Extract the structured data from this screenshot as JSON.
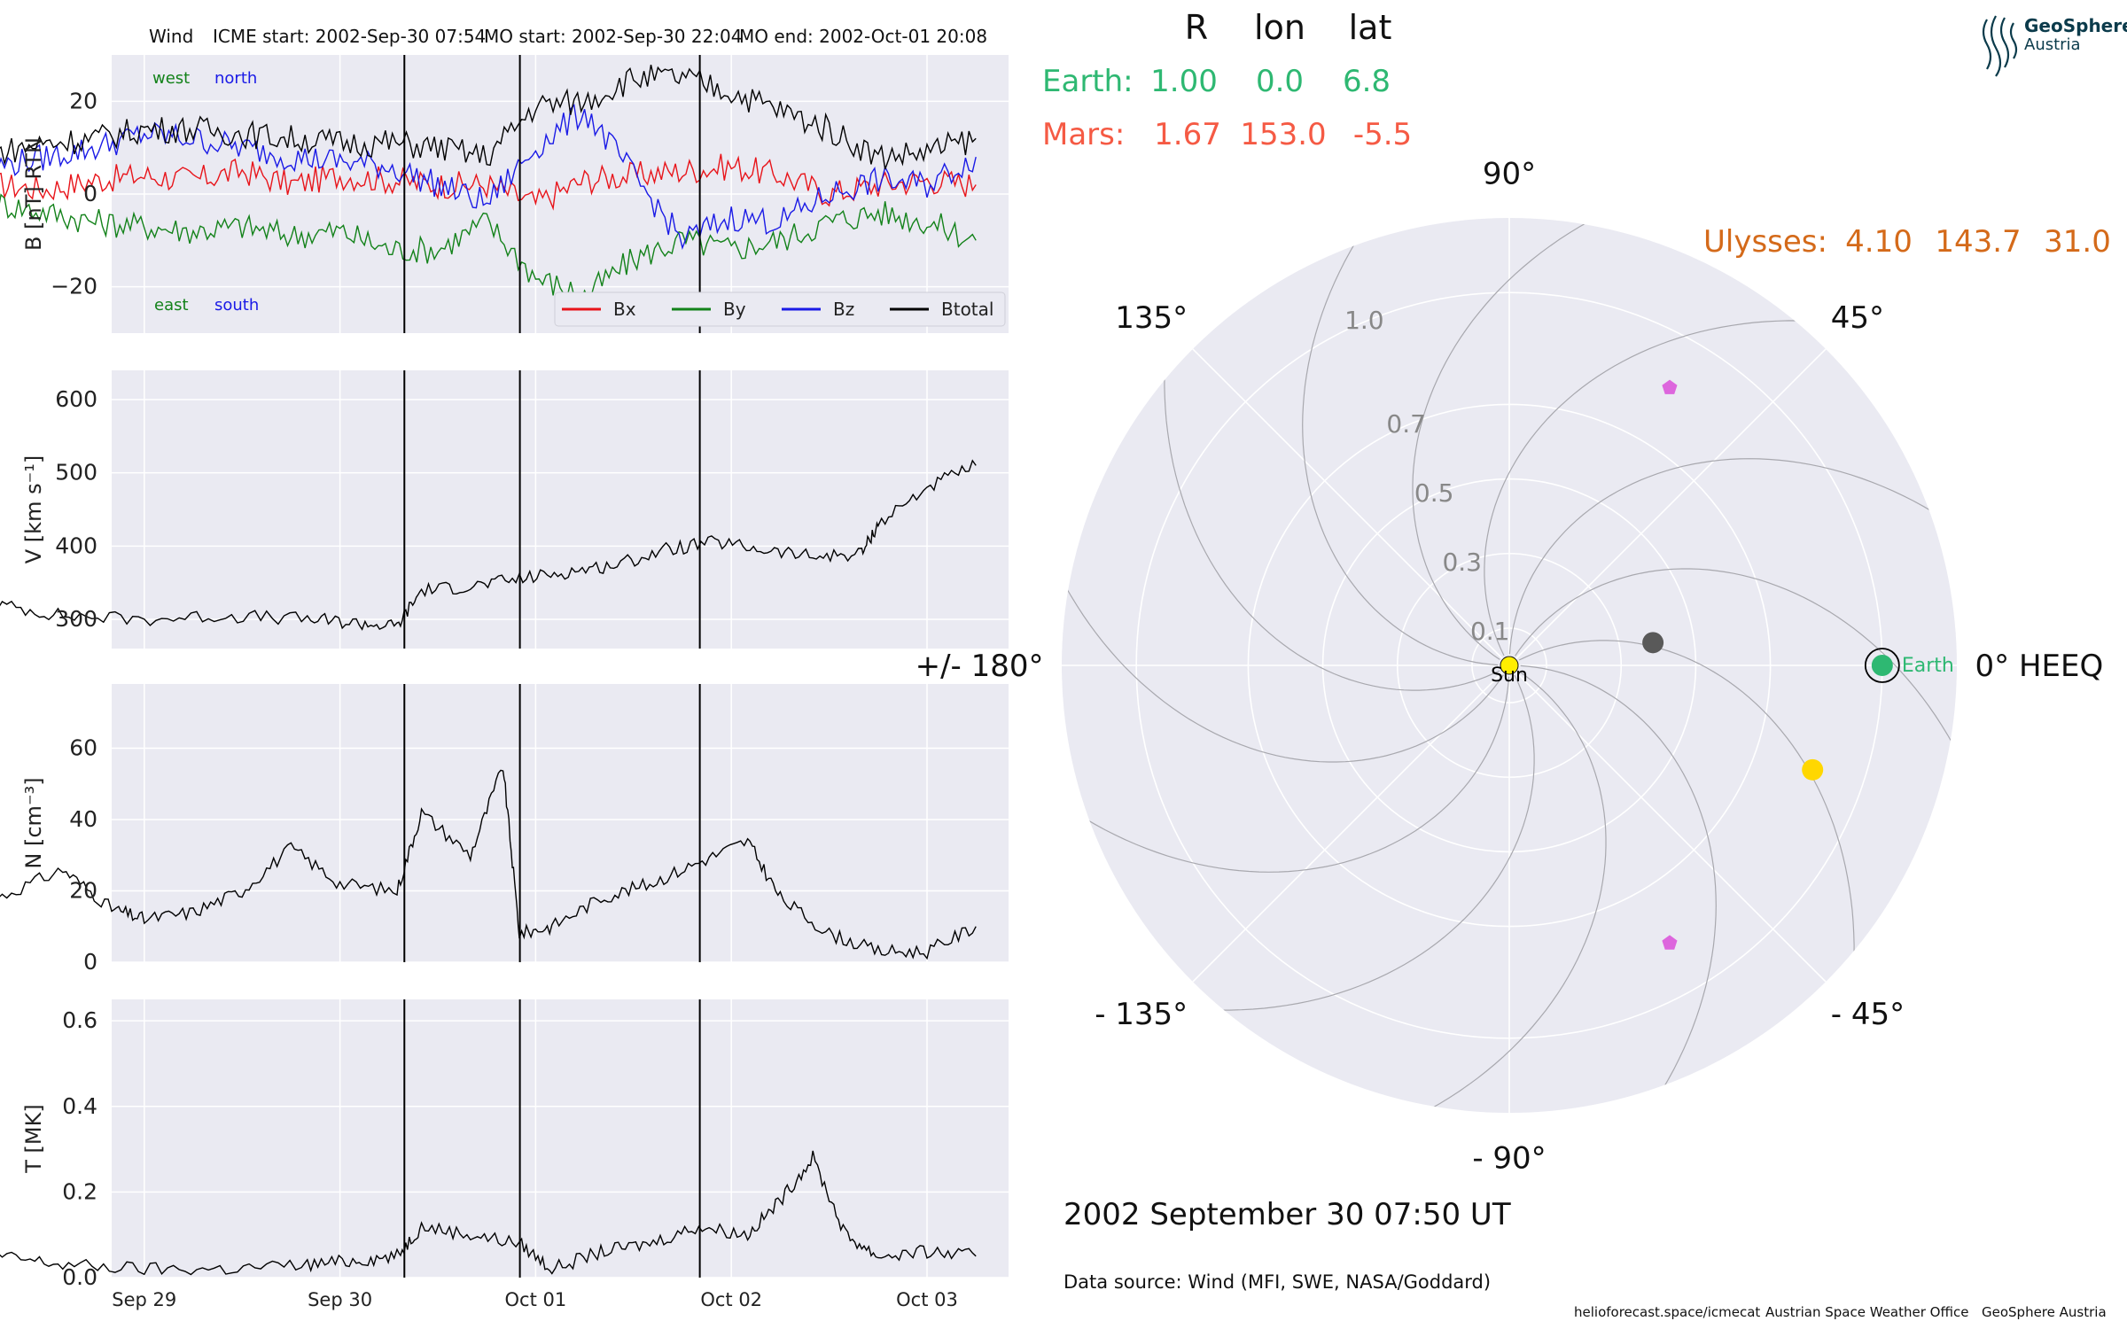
{
  "chart_data": [
    {
      "type": "line",
      "panel": "magnetic_field",
      "header": {
        "spacecraft": "Wind",
        "icme_start": "ICME start: 2002-Sep-30 07:54",
        "mo_start": "MO start: 2002-Sep-30 22:04",
        "mo_end": "MO end: 2002-Oct-01 20:08"
      },
      "ylabel": "B [nT] RTN",
      "ylim": [
        -30,
        30
      ],
      "yticks": [
        "20",
        "0",
        "−20"
      ],
      "xlim": [
        "2002-09-28T20:00",
        "2002-10-03T10:00"
      ],
      "xticks": [
        "Sep 29",
        "Sep 30",
        "Oct 01",
        "Oct 02",
        "Oct 03"
      ],
      "annotations": {
        "top_left": "west",
        "top_right": "north",
        "bottom_left": "east",
        "bottom_right": "south"
      },
      "legend_placement": "lower-right",
      "event_lines": [
        "2002-09-30T07:54",
        "2002-09-30T22:04",
        "2002-10-01T20:08"
      ],
      "series": [
        {
          "name": "Bx",
          "color": "#e8141a",
          "x": [
            -18,
            -12,
            -6,
            0,
            6,
            12,
            18,
            24,
            30,
            36,
            42,
            48,
            54,
            60,
            66,
            72,
            78,
            84,
            90,
            96,
            102
          ],
          "values": [
            2,
            1,
            3,
            4,
            3,
            5,
            2,
            4,
            3,
            2,
            2,
            -2,
            3,
            4,
            5,
            6,
            4,
            0,
            2,
            3,
            2
          ]
        },
        {
          "name": "By",
          "color": "#13821a",
          "x": [
            -18,
            -12,
            -6,
            0,
            6,
            12,
            18,
            24,
            30,
            36,
            42,
            48,
            54,
            60,
            66,
            72,
            78,
            84,
            90,
            96,
            102
          ],
          "values": [
            -2,
            -4,
            -6,
            -7,
            -8,
            -7,
            -9,
            -8,
            -12,
            -12,
            -6,
            -18,
            -22,
            -14,
            -10,
            -12,
            -10,
            -6,
            -4,
            -6,
            -10
          ]
        },
        {
          "name": "Bz",
          "color": "#1a1ae6",
          "x": [
            -18,
            -12,
            -6,
            0,
            6,
            12,
            18,
            24,
            30,
            36,
            42,
            48,
            54,
            60,
            66,
            72,
            78,
            84,
            90,
            96,
            102
          ],
          "values": [
            6,
            8,
            10,
            13,
            12,
            10,
            8,
            7,
            6,
            2,
            -2,
            10,
            18,
            4,
            -10,
            -5,
            -6,
            0,
            3,
            2,
            8
          ]
        },
        {
          "name": "Btotal",
          "color": "#000000",
          "x": [
            -18,
            -12,
            -6,
            0,
            6,
            12,
            18,
            24,
            30,
            36,
            42,
            48,
            54,
            60,
            66,
            72,
            78,
            84,
            90,
            96,
            102
          ],
          "values": [
            9,
            11,
            12,
            14,
            14,
            13,
            12,
            11,
            11,
            10,
            8,
            19,
            20,
            25,
            25,
            22,
            18,
            14,
            8,
            9,
            12
          ]
        }
      ]
    },
    {
      "type": "line",
      "panel": "speed",
      "ylabel": "V [km s⁻¹]",
      "ylim": [
        260,
        640
      ],
      "yticks": [
        "600",
        "500",
        "400",
        "300"
      ],
      "series": [
        {
          "color": "#000000",
          "x": [
            -18,
            -10,
            0,
            10,
            20,
            26,
            31,
            34,
            40,
            46,
            52,
            58,
            64,
            70,
            76,
            82,
            88,
            90,
            96,
            102
          ],
          "values": [
            320,
            305,
            300,
            305,
            300,
            295,
            290,
            340,
            345,
            355,
            365,
            375,
            395,
            405,
            395,
            385,
            390,
            430,
            480,
            510
          ]
        }
      ]
    },
    {
      "type": "line",
      "panel": "density",
      "ylabel": "N [cm⁻³]",
      "ylim": [
        0,
        78
      ],
      "yticks": [
        "60",
        "40",
        "20",
        "0"
      ],
      "series": [
        {
          "color": "#000000",
          "x": [
            -18,
            -10,
            -4,
            0,
            6,
            12,
            18,
            24,
            31,
            34,
            40,
            44,
            46,
            50,
            56,
            62,
            68,
            74,
            78,
            84,
            90,
            96,
            102
          ],
          "values": [
            18,
            26,
            15,
            12,
            14,
            20,
            32,
            22,
            20,
            42,
            30,
            55,
            8,
            10,
            18,
            22,
            28,
            34,
            18,
            8,
            3,
            3,
            10
          ]
        }
      ]
    },
    {
      "type": "line",
      "panel": "temperature",
      "ylabel": "T [MK]",
      "ylim": [
        0,
        0.65
      ],
      "yticks": [
        "0.6",
        "0.4",
        "0.2",
        "0.0"
      ],
      "series": [
        {
          "color": "#000000",
          "x": [
            -18,
            -10,
            0,
            10,
            20,
            26,
            31,
            34,
            40,
            46,
            50,
            56,
            62,
            68,
            74,
            78,
            82,
            86,
            90,
            96,
            102
          ],
          "values": [
            0.05,
            0.03,
            0.02,
            0.02,
            0.03,
            0.04,
            0.05,
            0.12,
            0.1,
            0.08,
            0.02,
            0.06,
            0.08,
            0.12,
            0.1,
            0.18,
            0.28,
            0.1,
            0.05,
            0.06,
            0.05
          ]
        }
      ]
    },
    {
      "type": "scatter",
      "panel": "heliospheric_position",
      "projection": "polar",
      "header_columns": {
        "r": "R",
        "lon": "lon",
        "lat": "lat"
      },
      "positions": [
        {
          "name": "Earth",
          "label": "Earth:",
          "R": "1.00",
          "lon": "0.0",
          "lat": "6.8",
          "color": "#2eb872"
        },
        {
          "name": "Mars",
          "label": "Mars:",
          "R": "1.67",
          "lon": "153.0",
          "lat": "-5.5",
          "color": "#f55a44"
        },
        {
          "name": "Ulysses",
          "label": "Ulysses:",
          "R": "4.10",
          "lon": "143.7",
          "lat": "31.0",
          "color": "#d46a1a"
        }
      ],
      "angle_labels": [
        {
          "deg": 0,
          "text": "0° HEEQ"
        },
        {
          "deg": 45,
          "text": "45°"
        },
        {
          "deg": 90,
          "text": "90°"
        },
        {
          "deg": 135,
          "text": "135°"
        },
        {
          "deg": 180,
          "text": "+/- 180°"
        },
        {
          "deg": -135,
          "text": "- 135°"
        },
        {
          "deg": -90,
          "text": "- 90°"
        },
        {
          "deg": -45,
          "text": "- 45°"
        }
      ],
      "radial_ticks": [
        0.1,
        0.3,
        0.5,
        0.7,
        1.0
      ],
      "radial_tick_labels": [
        "0.1",
        "0.3",
        "0.5",
        "0.7",
        "1.0"
      ],
      "rmax": 1.2,
      "radial_tick_lon": 112,
      "markers": [
        {
          "name": "Sun",
          "label": "Sun",
          "r": 0.0,
          "lon": 0,
          "color": "#ffee00",
          "shape": "circle"
        },
        {
          "name": "Earth",
          "label": "Earth",
          "r": 1.0,
          "lon": 0,
          "color": "#2eb872",
          "shape": "circle-ring"
        },
        {
          "name": "planet-grey",
          "r": 0.39,
          "lon": 9,
          "color": "#595959",
          "shape": "circle"
        },
        {
          "name": "planet-gold",
          "r": 0.86,
          "lon": -19,
          "color": "#ffd700",
          "shape": "circle"
        },
        {
          "name": "probe-upper",
          "r": 0.86,
          "lon": 60,
          "color": "#dd66dd",
          "shape": "pentagon"
        },
        {
          "name": "probe-lower",
          "r": 0.86,
          "lon": -60,
          "color": "#dd66dd",
          "shape": "pentagon"
        }
      ],
      "timestamp": "2002 September 30  07:50 UT",
      "data_source": "Data source: Wind (MFI, SWE, NASA/Goddard)"
    }
  ],
  "footer": {
    "site": "helioforecast.space/icmecat",
    "office": "Austrian Space Weather Office",
    "org": "GeoSphere Austria"
  },
  "logo": {
    "name": "GeoSphere",
    "sub": "Austria"
  },
  "colors": {
    "panel_bg": "#eaeaf2",
    "grid": "#ffffff",
    "earth": "#2eb872",
    "mars": "#f55a44",
    "ulysses": "#d46a1a"
  }
}
